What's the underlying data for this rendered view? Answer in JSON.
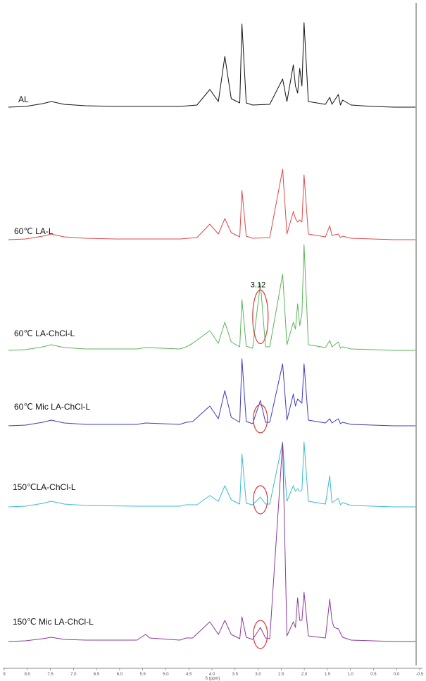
{
  "chart_data": {
    "type": "line",
    "title": "",
    "xlabel": "δ (ppm)",
    "ylabel": "",
    "x_reversed": true,
    "xlim": [
      9.0,
      -0.5
    ],
    "x_ticks": [
      "9",
      "8.0",
      "7.5",
      "7.0",
      "6.5",
      "6.0",
      "5.5",
      "5.0",
      "4.5",
      "4.0",
      "3.5",
      "3.0",
      "2.5",
      "2.0",
      "1.5",
      "1.0",
      "0.5",
      "0.0",
      "-0.5"
    ],
    "annotation": {
      "text": "3.12",
      "x": 3.12
    },
    "circled_peak_ppm": 3.12,
    "grid": false,
    "legend": "none",
    "series": [
      {
        "name": "AL",
        "color": "#111111",
        "baseline": 152,
        "points": [
          [
            9.0,
            0
          ],
          [
            8.6,
            1
          ],
          [
            8.2,
            5
          ],
          [
            8.0,
            8
          ],
          [
            7.7,
            4
          ],
          [
            7.2,
            2
          ],
          [
            6.5,
            1
          ],
          [
            5.0,
            1
          ],
          [
            4.6,
            3
          ],
          [
            4.3,
            25
          ],
          [
            4.1,
            8
          ],
          [
            3.95,
            72
          ],
          [
            3.8,
            12
          ],
          [
            3.6,
            6
          ],
          [
            3.55,
            118
          ],
          [
            3.45,
            6
          ],
          [
            3.3,
            3
          ],
          [
            2.9,
            4
          ],
          [
            2.6,
            40
          ],
          [
            2.5,
            8
          ],
          [
            2.35,
            60
          ],
          [
            2.3,
            30
          ],
          [
            2.25,
            20
          ],
          [
            2.2,
            55
          ],
          [
            2.15,
            30
          ],
          [
            2.1,
            120
          ],
          [
            2.0,
            8
          ],
          [
            1.6,
            4
          ],
          [
            1.5,
            14
          ],
          [
            1.45,
            4
          ],
          [
            1.3,
            18
          ],
          [
            1.25,
            3
          ],
          [
            1.2,
            10
          ],
          [
            1.0,
            3
          ],
          [
            0.5,
            1
          ],
          [
            0.0,
            0
          ],
          [
            -0.5,
            0
          ]
        ]
      },
      {
        "name": "60℃ LA-L",
        "color": "#e04848",
        "baseline": 340,
        "points": [
          [
            9.0,
            0
          ],
          [
            8.6,
            1
          ],
          [
            8.2,
            5
          ],
          [
            8.0,
            8
          ],
          [
            7.7,
            4
          ],
          [
            7.2,
            2
          ],
          [
            6.5,
            1
          ],
          [
            5.0,
            1
          ],
          [
            4.6,
            3
          ],
          [
            4.3,
            22
          ],
          [
            4.1,
            8
          ],
          [
            3.95,
            30
          ],
          [
            3.8,
            10
          ],
          [
            3.6,
            4
          ],
          [
            3.55,
            70
          ],
          [
            3.45,
            5
          ],
          [
            3.3,
            2
          ],
          [
            2.9,
            3
          ],
          [
            2.6,
            100
          ],
          [
            2.5,
            8
          ],
          [
            2.35,
            40
          ],
          [
            2.3,
            30
          ],
          [
            2.25,
            25
          ],
          [
            2.2,
            28
          ],
          [
            2.15,
            25
          ],
          [
            2.1,
            92
          ],
          [
            2.0,
            8
          ],
          [
            1.6,
            4
          ],
          [
            1.5,
            20
          ],
          [
            1.45,
            6
          ],
          [
            1.3,
            8
          ],
          [
            1.25,
            3
          ],
          [
            1.2,
            5
          ],
          [
            1.0,
            2
          ],
          [
            0.5,
            1
          ],
          [
            0.0,
            0
          ],
          [
            -0.5,
            0
          ]
        ]
      },
      {
        "name": "60℃ LA-ChCl-L",
        "color": "#5ab45a",
        "baseline": 497,
        "points": [
          [
            9.0,
            0
          ],
          [
            8.6,
            1
          ],
          [
            8.2,
            5
          ],
          [
            8.0,
            8
          ],
          [
            7.7,
            4
          ],
          [
            7.2,
            2
          ],
          [
            6.0,
            2
          ],
          [
            5.8,
            4
          ],
          [
            5.0,
            2
          ],
          [
            4.85,
            5
          ],
          [
            4.7,
            10
          ],
          [
            4.3,
            28
          ],
          [
            4.1,
            10
          ],
          [
            3.95,
            40
          ],
          [
            3.8,
            12
          ],
          [
            3.6,
            5
          ],
          [
            3.55,
            72
          ],
          [
            3.45,
            6
          ],
          [
            3.3,
            3
          ],
          [
            3.12,
            95
          ],
          [
            3.0,
            5
          ],
          [
            2.9,
            5
          ],
          [
            2.6,
            108
          ],
          [
            2.5,
            8
          ],
          [
            2.35,
            40
          ],
          [
            2.3,
            30
          ],
          [
            2.25,
            66
          ],
          [
            2.2,
            35
          ],
          [
            2.15,
            52
          ],
          [
            2.1,
            150
          ],
          [
            2.0,
            8
          ],
          [
            1.6,
            4
          ],
          [
            1.5,
            14
          ],
          [
            1.45,
            5
          ],
          [
            1.3,
            12
          ],
          [
            1.25,
            3
          ],
          [
            1.2,
            5
          ],
          [
            1.0,
            2
          ],
          [
            0.5,
            1
          ],
          [
            0.0,
            0
          ],
          [
            -0.5,
            0
          ]
        ]
      },
      {
        "name": "60℃ Mic LA-ChCl-L",
        "color": "#3b3bc0",
        "baseline": 604,
        "points": [
          [
            9.0,
            0
          ],
          [
            8.6,
            1
          ],
          [
            8.2,
            5
          ],
          [
            8.0,
            8
          ],
          [
            7.7,
            4
          ],
          [
            7.2,
            2
          ],
          [
            6.0,
            2
          ],
          [
            5.8,
            4
          ],
          [
            5.0,
            2
          ],
          [
            4.85,
            5
          ],
          [
            4.7,
            6
          ],
          [
            4.3,
            28
          ],
          [
            4.1,
            10
          ],
          [
            3.95,
            50
          ],
          [
            3.8,
            12
          ],
          [
            3.6,
            5
          ],
          [
            3.55,
            95
          ],
          [
            3.45,
            6
          ],
          [
            3.3,
            3
          ],
          [
            3.12,
            36
          ],
          [
            3.0,
            5
          ],
          [
            2.9,
            5
          ],
          [
            2.6,
            88
          ],
          [
            2.5,
            8
          ],
          [
            2.35,
            45
          ],
          [
            2.3,
            28
          ],
          [
            2.25,
            38
          ],
          [
            2.2,
            35
          ],
          [
            2.15,
            32
          ],
          [
            2.1,
            88
          ],
          [
            2.0,
            8
          ],
          [
            1.6,
            4
          ],
          [
            1.5,
            10
          ],
          [
            1.45,
            4
          ],
          [
            1.3,
            10
          ],
          [
            1.25,
            3
          ],
          [
            1.2,
            5
          ],
          [
            1.0,
            2
          ],
          [
            0.5,
            1
          ],
          [
            0.0,
            0
          ],
          [
            -0.5,
            0
          ]
        ]
      },
      {
        "name": "150℃LA-ChCl-L",
        "color": "#3bbcd0",
        "baseline": 719,
        "points": [
          [
            9.0,
            0
          ],
          [
            8.6,
            1
          ],
          [
            8.2,
            5
          ],
          [
            8.0,
            8
          ],
          [
            7.7,
            4
          ],
          [
            7.2,
            2
          ],
          [
            6.0,
            1
          ],
          [
            5.0,
            1
          ],
          [
            4.85,
            3
          ],
          [
            4.6,
            3
          ],
          [
            4.3,
            16
          ],
          [
            4.1,
            8
          ],
          [
            3.95,
            30
          ],
          [
            3.8,
            10
          ],
          [
            3.6,
            4
          ],
          [
            3.55,
            75
          ],
          [
            3.45,
            5
          ],
          [
            3.3,
            3
          ],
          [
            3.12,
            14
          ],
          [
            3.0,
            4
          ],
          [
            2.9,
            4
          ],
          [
            2.6,
            92
          ],
          [
            2.5,
            8
          ],
          [
            2.35,
            30
          ],
          [
            2.3,
            22
          ],
          [
            2.25,
            26
          ],
          [
            2.2,
            22
          ],
          [
            2.15,
            24
          ],
          [
            2.1,
            92
          ],
          [
            2.0,
            8
          ],
          [
            1.6,
            4
          ],
          [
            1.5,
            44
          ],
          [
            1.45,
            6
          ],
          [
            1.3,
            12
          ],
          [
            1.25,
            3
          ],
          [
            1.2,
            6
          ],
          [
            1.0,
            2
          ],
          [
            0.5,
            1
          ],
          [
            0.0,
            0
          ],
          [
            -0.5,
            0
          ]
        ]
      },
      {
        "name": "150℃ Mic LA-ChCl-L",
        "color": "#8a3a9a",
        "baseline": 910,
        "points": [
          [
            9.0,
            0
          ],
          [
            8.6,
            1
          ],
          [
            8.2,
            4
          ],
          [
            8.0,
            6
          ],
          [
            7.7,
            3
          ],
          [
            7.2,
            2
          ],
          [
            6.0,
            2
          ],
          [
            5.8,
            10
          ],
          [
            5.7,
            5
          ],
          [
            5.0,
            2
          ],
          [
            4.85,
            5
          ],
          [
            4.7,
            5
          ],
          [
            4.3,
            28
          ],
          [
            4.1,
            10
          ],
          [
            3.95,
            30
          ],
          [
            3.8,
            10
          ],
          [
            3.6,
            4
          ],
          [
            3.55,
            35
          ],
          [
            3.45,
            6
          ],
          [
            3.3,
            3
          ],
          [
            3.12,
            20
          ],
          [
            3.0,
            5
          ],
          [
            2.9,
            4
          ],
          [
            2.6,
            282
          ],
          [
            2.5,
            8
          ],
          [
            2.35,
            28
          ],
          [
            2.3,
            20
          ],
          [
            2.25,
            62
          ],
          [
            2.2,
            30
          ],
          [
            2.15,
            30
          ],
          [
            2.1,
            70
          ],
          [
            2.0,
            8
          ],
          [
            1.6,
            5
          ],
          [
            1.5,
            60
          ],
          [
            1.45,
            30
          ],
          [
            1.4,
            20
          ],
          [
            1.3,
            18
          ],
          [
            1.2,
            6
          ],
          [
            1.0,
            2
          ],
          [
            0.5,
            1
          ],
          [
            0.0,
            0
          ],
          [
            -0.5,
            0
          ]
        ]
      }
    ]
  }
}
